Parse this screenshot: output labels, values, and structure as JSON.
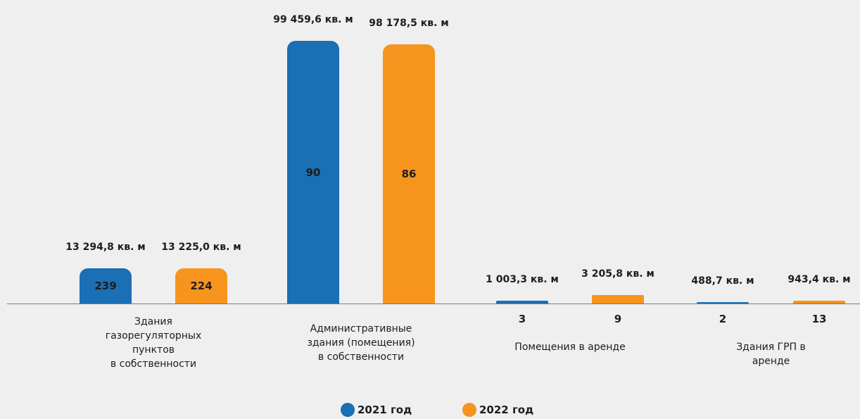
{
  "chart_data": {
    "type": "bar",
    "categories": [
      "Здания\nгазорегуляторных\nпунктов\nв собственности",
      "Административные\nздания (помещения)\nв собственности",
      "Помещения в аренде",
      "Здания ГРП в аренде"
    ],
    "series": [
      {
        "name": "2021 год",
        "color": "#1a6fb5",
        "values": [
          13294.8,
          99459.6,
          1003.3,
          488.7
        ],
        "value_labels": [
          "13 294,8 кв. м",
          "99 459,6 кв. м",
          "1 003,3 кв. м",
          "488,7 кв. м"
        ],
        "counts": [
          239,
          90,
          3,
          2
        ]
      },
      {
        "name": "2022 год",
        "color": "#f7941d",
        "values": [
          13225.0,
          98178.5,
          3205.8,
          943.4
        ],
        "value_labels": [
          "13 225,0 кв. м",
          "98 178,5 кв. м",
          "3 205,8 кв. м",
          "943,4 кв. м"
        ],
        "counts": [
          224,
          86,
          9,
          13
        ]
      }
    ],
    "legend": "bottom"
  }
}
